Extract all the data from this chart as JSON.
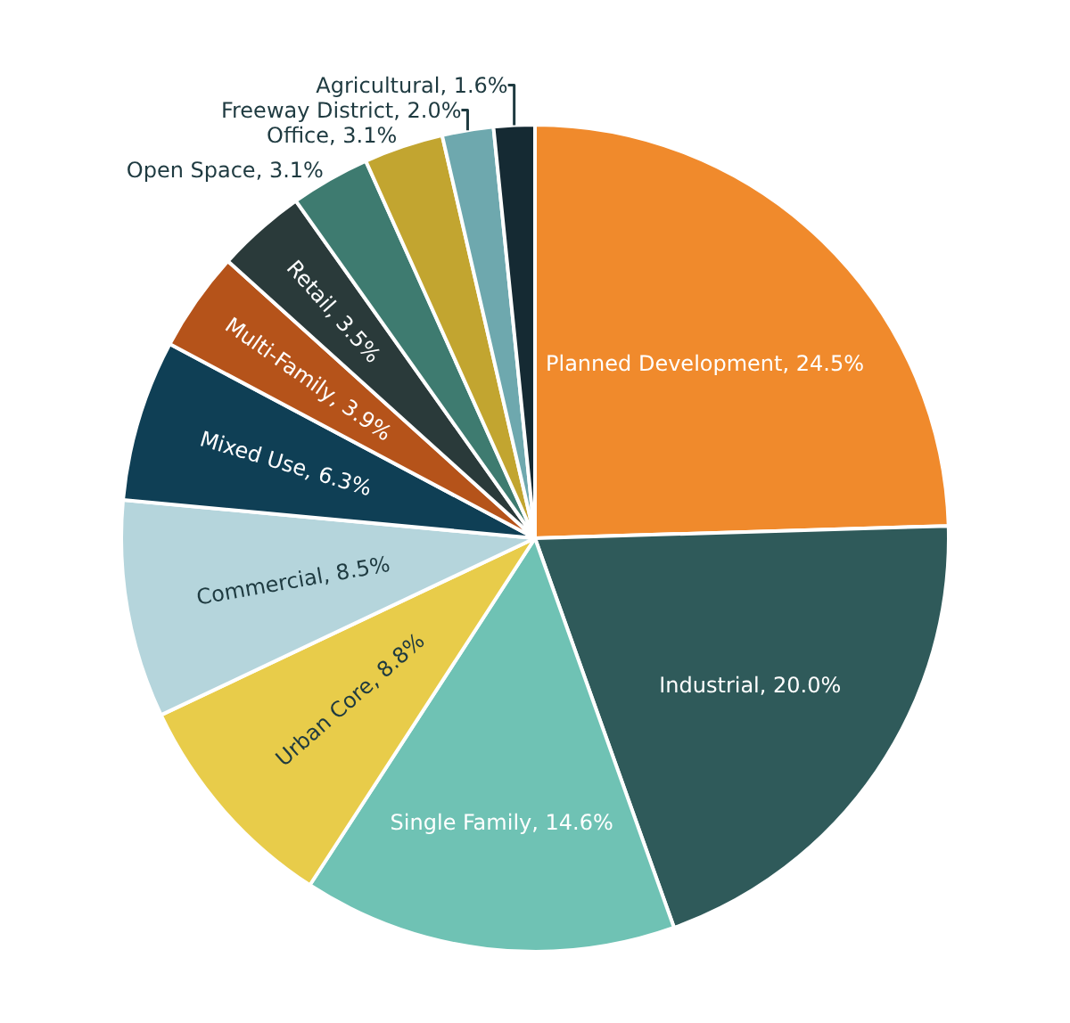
{
  "chart_data": {
    "type": "pie",
    "categories": [
      "Planned Development",
      "Industrial",
      "Single Family",
      "Urban Core",
      "Commercial",
      "Mixed Use",
      "Multi-Family",
      "Retail",
      "Open Space",
      "Office",
      "Freeway District",
      "Agricultural"
    ],
    "values": [
      24.5,
      20.0,
      14.6,
      8.8,
      8.5,
      6.3,
      3.9,
      3.5,
      3.1,
      3.1,
      2.0,
      1.6
    ],
    "value_labels": [
      "24.5%",
      "20.0%",
      "14.6%",
      "8.8%",
      "8.5%",
      "6.3%",
      "3.9%",
      "3.5%",
      "3.1%",
      "3.1%",
      "2.0%",
      "1.6%"
    ],
    "colors": [
      "#f08a2c",
      "#2f5a5a",
      "#6fc2b4",
      "#e8cc4a",
      "#b5d5dc",
      "#0f3f55",
      "#b5531a",
      "#2a3a3a",
      "#3e7b70",
      "#c2a530",
      "#6ea8ae",
      "#152a33"
    ],
    "legend": false
  }
}
